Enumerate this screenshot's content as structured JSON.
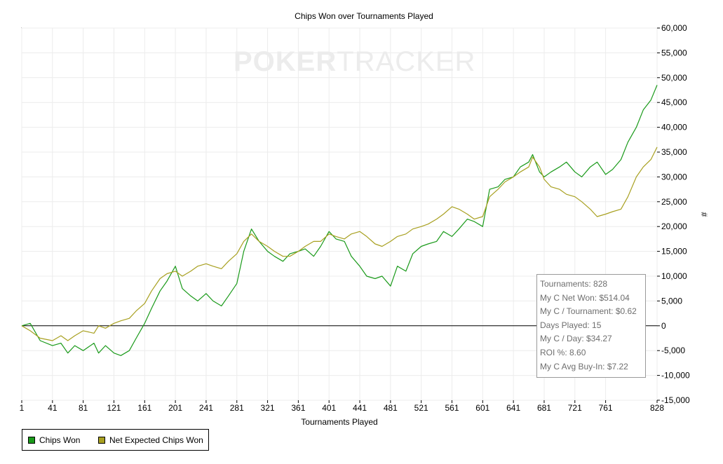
{
  "watermark": {
    "part1": "POKER",
    "part2": "TRACKER"
  },
  "chart_data": {
    "type": "line",
    "title": "Chips Won over Tournaments Played",
    "xlabel": "Tournaments Played",
    "ylabel": "#",
    "xlim": [
      1,
      828
    ],
    "ylim": [
      -15000,
      60000
    ],
    "x_ticks": [
      1,
      41,
      81,
      121,
      161,
      201,
      241,
      281,
      321,
      361,
      401,
      441,
      481,
      521,
      561,
      601,
      641,
      681,
      721,
      761,
      828
    ],
    "y_ticks": [
      -15000,
      -10000,
      -5000,
      0,
      5000,
      10000,
      15000,
      20000,
      25000,
      30000,
      35000,
      40000,
      45000,
      50000,
      55000,
      60000
    ],
    "y_tick_labels": [
      "-15,000",
      "-10,000",
      "-5,000",
      "0",
      "5,000",
      "10,000",
      "15,000",
      "20,000",
      "25,000",
      "30,000",
      "35,000",
      "40,000",
      "45,000",
      "50,000",
      "55,000",
      "60,000"
    ],
    "grid": true,
    "legend_position": "bottom-left",
    "series": [
      {
        "name": "Chips Won",
        "color": "#1a9a1a",
        "x": [
          1,
          12,
          25,
          41,
          52,
          61,
          70,
          81,
          95,
          101,
          110,
          121,
          130,
          141,
          150,
          161,
          170,
          181,
          190,
          201,
          210,
          221,
          230,
          241,
          250,
          261,
          270,
          281,
          290,
          300,
          310,
          321,
          330,
          341,
          350,
          361,
          370,
          381,
          390,
          401,
          410,
          421,
          430,
          441,
          450,
          461,
          470,
          481,
          490,
          501,
          510,
          521,
          530,
          541,
          550,
          561,
          570,
          581,
          590,
          601,
          610,
          621,
          630,
          641,
          650,
          661,
          666,
          675,
          681,
          690,
          701,
          710,
          721,
          730,
          741,
          750,
          761,
          770,
          781,
          790,
          801,
          810,
          820,
          828
        ],
        "values": [
          0,
          500,
          -3000,
          -4000,
          -3500,
          -5500,
          -4000,
          -5000,
          -3500,
          -5500,
          -4000,
          -5500,
          -6000,
          -5000,
          -2500,
          500,
          3500,
          7000,
          9000,
          12000,
          7500,
          6000,
          5000,
          6500,
          5000,
          4000,
          6000,
          8500,
          15000,
          19500,
          17000,
          15000,
          14000,
          13000,
          14500,
          15000,
          15500,
          14000,
          16000,
          19000,
          17500,
          17000,
          14000,
          12000,
          10000,
          9500,
          10000,
          8000,
          12000,
          11000,
          14500,
          16000,
          16500,
          17000,
          19000,
          18000,
          19500,
          21500,
          21000,
          20000,
          27500,
          28000,
          29500,
          30000,
          32000,
          33000,
          34500,
          31000,
          30000,
          31000,
          32000,
          33000,
          31000,
          30000,
          32000,
          33000,
          30500,
          31500,
          33500,
          37000,
          40000,
          43500,
          45500,
          48500
        ]
      },
      {
        "name": "Net Expected Chips Won",
        "color": "#a8a020",
        "x": [
          1,
          12,
          25,
          41,
          52,
          61,
          70,
          81,
          95,
          101,
          110,
          121,
          130,
          141,
          150,
          161,
          170,
          181,
          190,
          201,
          210,
          221,
          230,
          241,
          250,
          261,
          270,
          281,
          290,
          300,
          310,
          321,
          330,
          341,
          350,
          361,
          370,
          381,
          390,
          401,
          410,
          421,
          430,
          441,
          450,
          461,
          470,
          481,
          490,
          501,
          510,
          521,
          530,
          541,
          550,
          561,
          570,
          581,
          590,
          601,
          610,
          621,
          630,
          641,
          650,
          661,
          666,
          675,
          681,
          690,
          701,
          710,
          721,
          730,
          741,
          750,
          761,
          770,
          781,
          790,
          801,
          810,
          820,
          828
        ],
        "values": [
          0,
          -1000,
          -2500,
          -3000,
          -2000,
          -3000,
          -2000,
          -1000,
          -1500,
          0,
          -500,
          500,
          1000,
          1500,
          3000,
          4500,
          7000,
          9500,
          10500,
          11000,
          10000,
          11000,
          12000,
          12500,
          12000,
          11500,
          13000,
          14500,
          17000,
          18500,
          17000,
          16000,
          15000,
          14000,
          14000,
          15000,
          16000,
          17000,
          17000,
          18500,
          18000,
          17500,
          18500,
          19000,
          18000,
          16500,
          16000,
          17000,
          18000,
          18500,
          19500,
          20000,
          20500,
          21500,
          22500,
          24000,
          23500,
          22500,
          21500,
          22000,
          26000,
          27500,
          29000,
          30000,
          31000,
          32000,
          34000,
          32000,
          29500,
          28000,
          27500,
          26500,
          26000,
          25000,
          23500,
          22000,
          22500,
          23000,
          23500,
          26000,
          30000,
          32000,
          33500,
          36000
        ]
      }
    ]
  },
  "stats": [
    "Tournaments: 828",
    "My C Net Won: $514.04",
    "My C / Tournament: $0.62",
    "Days Played: 15",
    "My C / Day: $34.27",
    "ROI %: 8.60",
    "My C Avg Buy-In: $7.22"
  ]
}
